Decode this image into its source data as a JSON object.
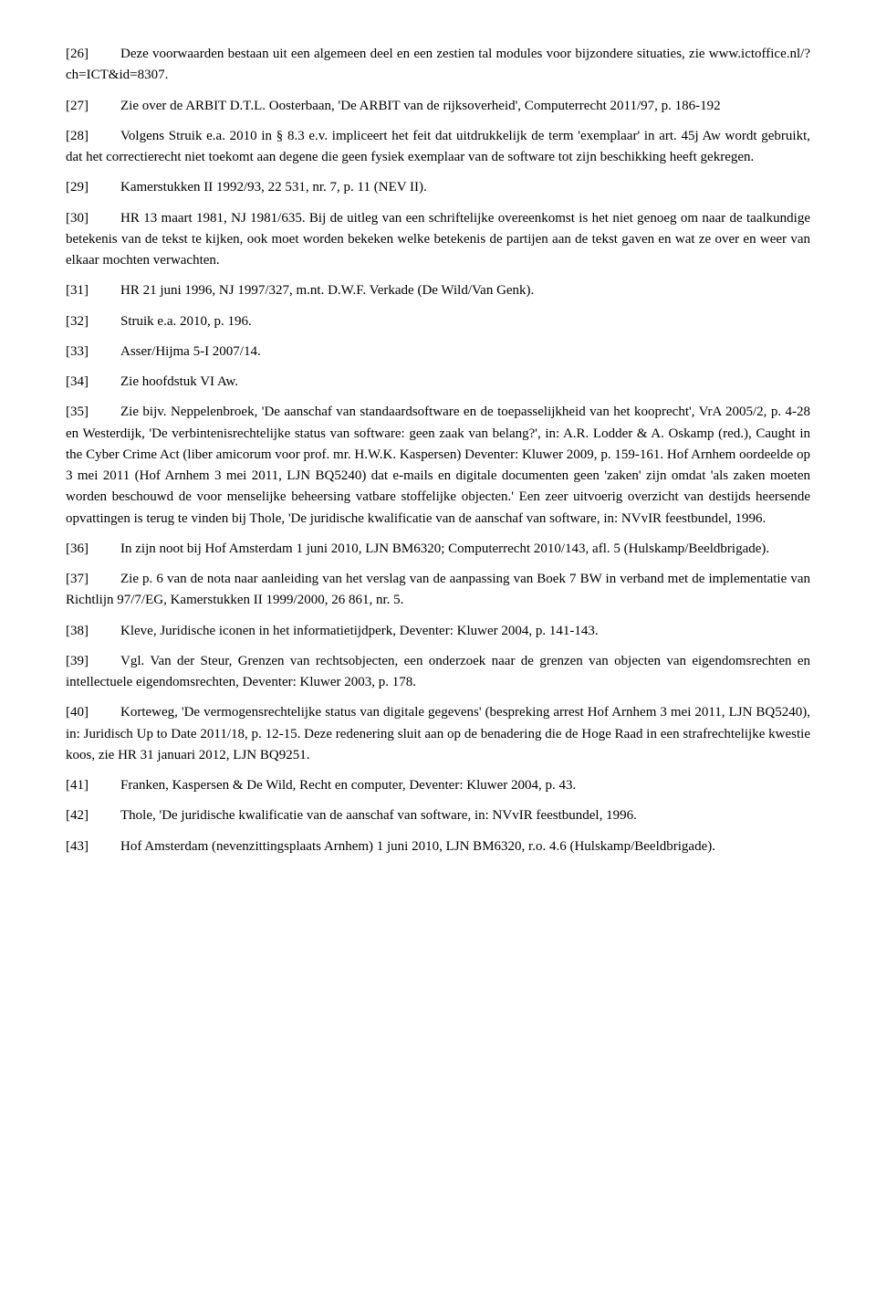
{
  "refs": [
    {
      "n": "[26]",
      "text": "Deze voorwaarden bestaan uit een algemeen deel en een zestien tal modules voor bijzondere situaties, zie www.ictoffice.nl/?ch=ICT&id=8307."
    },
    {
      "n": "[27]",
      "text": "Zie over de ARBIT D.T.L. Oosterbaan, 'De ARBIT van de rijksoverheid', Computerrecht 2011/97, p. 186-192"
    },
    {
      "n": "[28]",
      "text": "Volgens Struik e.a. 2010 in § 8.3 e.v. impliceert het feit dat uitdrukkelijk de term 'exemplaar' in art. 45j Aw wordt gebruikt, dat het correctierecht niet toekomt aan degene die geen fysiek exemplaar van de software tot zijn beschikking heeft gekregen."
    },
    {
      "n": "[29]",
      "text": "Kamerstukken II 1992/93, 22 531, nr. 7, p. 11 (NEV II)."
    },
    {
      "n": "[30]",
      "text": "HR 13 maart 1981, NJ 1981/635. Bij de uitleg van een schriftelijke overeenkomst is het niet genoeg om naar de taalkundige betekenis van de tekst te kijken, ook moet worden bekeken welke betekenis de partijen aan de tekst gaven en wat ze over en weer van elkaar mochten verwachten."
    },
    {
      "n": "[31]",
      "text": "HR 21 juni 1996, NJ 1997/327, m.nt. D.W.F. Verkade (De Wild/Van Genk)."
    },
    {
      "n": "[32]",
      "text": "Struik e.a. 2010, p. 196."
    },
    {
      "n": "[33]",
      "text": "Asser/Hijma 5-I 2007/14."
    },
    {
      "n": "[34]",
      "text": "Zie hoofdstuk VI Aw."
    },
    {
      "n": "[35]",
      "text": "Zie bijv. Neppelenbroek, 'De aanschaf van standaardsoftware en de toepasselijkheid van het kooprecht', VrA 2005/2, p. 4-28 en Westerdijk, 'De verbintenisrechtelijke status van software: geen zaak van belang?', in: A.R. Lodder & A. Oskamp (red.), Caught in the Cyber Crime Act (liber amicorum voor prof. mr. H.W.K. Kaspersen) Deventer: Kluwer 2009, p. 159-161. Hof Arnhem oordeelde op 3 mei 2011 (Hof Arnhem 3 mei 2011, LJN BQ5240) dat e-mails en digitale documenten geen 'zaken' zijn omdat 'als zaken moeten worden beschouwd de voor menselijke beheersing vatbare stoffelijke objecten.' Een zeer uitvoerig overzicht van destijds heersende opvattingen is terug te vinden bij Thole, 'De juridische kwalificatie van de aanschaf van software, in: NVvIR feestbundel, 1996."
    },
    {
      "n": "[36]",
      "text": "In zijn noot bij Hof Amsterdam 1 juni 2010, LJN BM6320; Computerrecht 2010/143, afl. 5 (Hulskamp/Beeldbrigade)."
    },
    {
      "n": "[37]",
      "text": "Zie p. 6 van de nota naar aanleiding van het verslag van de aanpassing van Boek 7 BW in verband met de implementatie van Richtlijn 97/7/EG, Kamerstukken II 1999/2000, 26 861, nr. 5."
    },
    {
      "n": "[38]",
      "text": "Kleve, Juridische iconen in het informatietijdperk, Deventer: Kluwer 2004, p. 141-143."
    },
    {
      "n": "[39]",
      "text": "Vgl. Van der Steur, Grenzen van rechtsobjecten, een onderzoek naar de grenzen van objecten van eigendomsrechten en intellectuele eigendomsrechten, Deventer: Kluwer 2003, p. 178."
    },
    {
      "n": "[40]",
      "text": "Korteweg, 'De vermogensrechtelijke status van digitale gegevens' (bespreking arrest Hof Arnhem 3 mei 2011, LJN BQ5240), in: Juridisch Up to Date 2011/18, p. 12-15. Deze redenering sluit aan op de benadering die de Hoge Raad in een strafrechtelijke kwestie koos, zie HR 31 januari 2012, LJN BQ9251."
    },
    {
      "n": "[41]",
      "text": "Franken, Kaspersen & De Wild, Recht en computer, Deventer: Kluwer 2004, p. 43."
    },
    {
      "n": "[42]",
      "text": "Thole, 'De juridische kwalificatie van de aanschaf van software, in: NVvIR feestbundel, 1996."
    },
    {
      "n": "[43]",
      "text": "Hof Amsterdam (nevenzittingsplaats Arnhem) 1 juni 2010, LJN BM6320, r.o. 4.6 (Hulskamp/Beeldbrigade)."
    }
  ]
}
